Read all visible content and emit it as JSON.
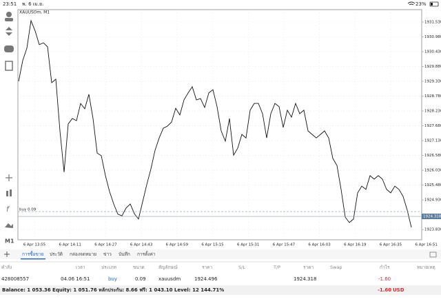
{
  "status_bar": {
    "time": "23:51",
    "date": "พ. 6 เม.ย.",
    "battery": "23%"
  },
  "toolbar": {
    "timeframe": "M1"
  },
  "chart": {
    "type": "line",
    "symbol": "XAUUSDm, M1",
    "color": "#111111",
    "ylim": [
      1923.45,
      1931.99
    ],
    "yticks": [
      {
        "value": 1931.53,
        "label": "1931.530"
      },
      {
        "value": 1930.98,
        "label": "1930.980"
      },
      {
        "value": 1930.43,
        "label": "1930.430"
      },
      {
        "value": 1929.88,
        "label": "1929.880"
      },
      {
        "value": 1929.33,
        "label": "1929.330"
      },
      {
        "value": 1928.78,
        "label": "1928.780"
      },
      {
        "value": 1928.23,
        "label": "1928.230"
      },
      {
        "value": 1927.68,
        "label": "1927.680"
      },
      {
        "value": 1927.13,
        "label": "1927.130"
      },
      {
        "value": 1926.58,
        "label": "1926.580"
      },
      {
        "value": 1926.03,
        "label": "1926.030"
      },
      {
        "value": 1925.48,
        "label": "1925.480"
      },
      {
        "value": 1924.93,
        "label": "1924.930"
      },
      {
        "value": 1923.83,
        "label": "1923.830"
      }
    ],
    "x_labels": [
      "6 Apr 13:55",
      "6 Apr 14:11",
      "6 Apr 14:27",
      "6 Apr 14:43",
      "6 Apr 14:59",
      "6 Apr 15:15",
      "6 Apr 15:31",
      "6 Apr 15:47",
      "6 Apr 16:03",
      "6 Apr 16:19",
      "6 Apr 16:35",
      "6 Apr 16:51"
    ],
    "prices": [
      1929.33,
      1930.1,
      1930.56,
      1931.58,
      1931.2,
      1930.69,
      1930.76,
      1930.61,
      1929.28,
      1929.41,
      1927.49,
      1925.96,
      1927.75,
      1927.95,
      1927.87,
      1928.51,
      1928.31,
      1928.85,
      1927.95,
      1926.67,
      1926.57,
      1925.83,
      1925.24,
      1924.78,
      1924.4,
      1924.34,
      1924.63,
      1924.78,
      1924.42,
      1924.22,
      1924.86,
      1925.5,
      1926.08,
      1926.77,
      1927.23,
      1927.59,
      1927.67,
      1927.82,
      1928.33,
      1928.08,
      1928.64,
      1928.9,
      1929.13,
      1928.64,
      1928.69,
      1928.36,
      1928.9,
      1929.02,
      1928.39,
      1927.49,
      1927.11,
      1927.95,
      1926.59,
      1926.85,
      1927.36,
      1927.23,
      1928.26,
      1928.51,
      1928.51,
      1928.13,
      1927.23,
      1928.13,
      1928.51,
      1928.39,
      1927.62,
      1928.26,
      1928.0,
      1928.51,
      1928.13,
      1928.26,
      1927.49,
      1927.36,
      1927.23,
      1927.36,
      1927.49,
      1927.23,
      1926.47,
      1926.21,
      1925.32,
      1924.29,
      1924.09,
      1924.22,
      1925.19,
      1925.44,
      1925.32,
      1925.83,
      1925.7,
      1925.83,
      1925.7,
      1925.32,
      1925.19,
      1925.44,
      1925.32,
      1925.06,
      1924.55,
      1923.91
    ],
    "order_line": {
      "label": "buy 0.09",
      "value": 1924.496
    },
    "bid": 1924.318
  },
  "tabs": [
    "การซื้อขาย",
    "ประวัติ",
    "กล่องจดหมาย",
    "ข่าว",
    "บันทึก",
    "การตั้งค่า"
  ],
  "table": {
    "headers": [
      "คำสั่ง",
      "เวลา",
      "ประเภท",
      "ขนาด",
      "สัญลักษณ์",
      "ราคา",
      "S/L",
      "T/P",
      "ราคา",
      "Swap",
      "กำไร",
      "หมายเหตุ"
    ],
    "rows": [
      {
        "order": "428008557",
        "time": "04.06 16:51",
        "type": "buy",
        "size": "0.09",
        "symbol": "xauusdm",
        "open_price": "1924.496",
        "price": "1924.318",
        "profit": "-1.60"
      }
    ]
  },
  "balance_bar": {
    "text": "Balance: 1 053.36 Equity: 1 051.76 หลักประกัน: 8.66 ฟรี: 1 043.10 Level: 12 144.71%",
    "profit": "-1.60",
    "currency": "USD"
  }
}
